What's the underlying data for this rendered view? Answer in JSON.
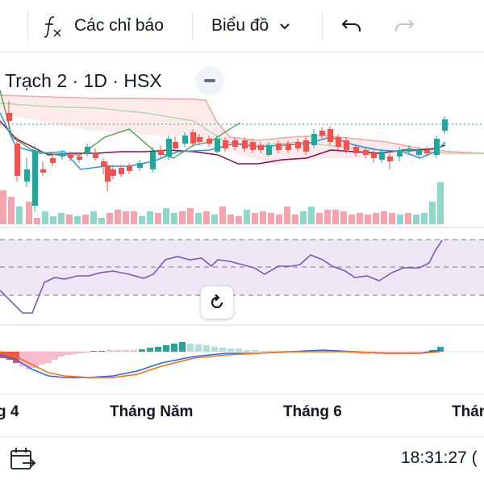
{
  "toolbar": {
    "indicators_label": "Các chỉ báo",
    "chart_type_label": "Biểu đồ",
    "icons": [
      "fx-icon",
      "chevron-down-icon",
      "undo-icon",
      "redo-icon"
    ]
  },
  "legend": {
    "symbol_text": "Trạch 2 · 1D · HSX"
  },
  "time_axis": {
    "ticks": [
      "g 4",
      "Tháng Năm",
      "Tháng 6",
      "Thán"
    ]
  },
  "footer": {
    "clock": "18:31:27 ("
  },
  "colors": {
    "up": "#26a69a",
    "down": "#ef5350",
    "up_volume": "#8ed7c9",
    "down_volume": "#f5a3ad",
    "rsi_line": "#7e57c2",
    "rsi_band": "#ede7f6",
    "macd_line": "#2962ff",
    "signal_line": "#ff6d00",
    "kijun": "#880e4f",
    "tenkan": "#2196f3",
    "chikou": "#43a047"
  },
  "chart_data": [
    {
      "type": "candlestick",
      "title": "",
      "series": [
        {
          "name": "",
          "ohlc_trend": "range-bound, then breakout up on last session"
        }
      ],
      "overlays": [
        "ichimoku"
      ],
      "volume": true
    },
    {
      "type": "line",
      "title": "",
      "levels": [
        30,
        50,
        70
      ]
    },
    {
      "type": "bar",
      "title": "",
      "lines": 2
    }
  ]
}
